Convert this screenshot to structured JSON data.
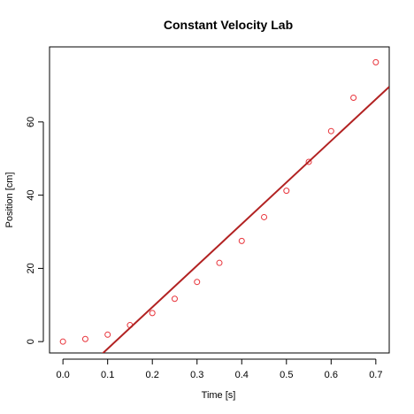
{
  "chart_data": {
    "type": "scatter",
    "title": "Constant Velocity Lab",
    "xlabel": "Time [s]",
    "ylabel": "Position [cm]",
    "xlim": [
      -0.03,
      0.73
    ],
    "ylim": [
      -3.1,
      80.5
    ],
    "x_ticks": [
      0.0,
      0.1,
      0.2,
      0.3,
      0.4,
      0.5,
      0.6,
      0.7
    ],
    "x_tick_labels": [
      "0.0",
      "0.1",
      "0.2",
      "0.3",
      "0.4",
      "0.5",
      "0.6",
      "0.7"
    ],
    "y_ticks": [
      0,
      20,
      40,
      60
    ],
    "y_tick_labels": [
      "0",
      "20",
      "40",
      "60"
    ],
    "grid": false,
    "series": [
      {
        "type": "scatter",
        "color": "#e8333a",
        "marker": "open-circle",
        "x": [
          0.0,
          0.05,
          0.1,
          0.15,
          0.2,
          0.25,
          0.3,
          0.35,
          0.4,
          0.45,
          0.5,
          0.55,
          0.6,
          0.65,
          0.7
        ],
        "y": [
          0.0,
          0.7,
          1.9,
          4.5,
          7.8,
          11.7,
          16.3,
          21.5,
          27.5,
          34.0,
          41.2,
          49.1,
          57.5,
          66.6,
          76.3
        ]
      },
      {
        "type": "line",
        "color": "#b22222",
        "x": [
          0.0,
          0.73
        ],
        "y": [
          -13.3,
          69.6
        ]
      }
    ]
  }
}
